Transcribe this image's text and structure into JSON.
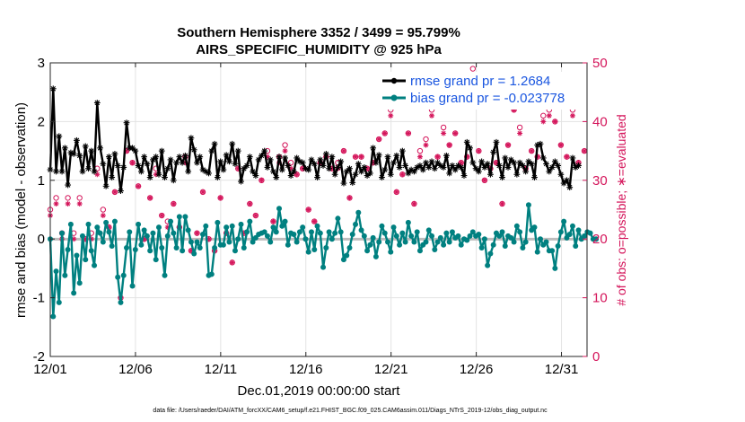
{
  "chart_data": {
    "type": "line",
    "title_line1": "Southern Hemisphere 3352 / 3499 = 95.799%",
    "title_line2": "AIRS_SPECIFIC_HUMIDITY @ 925 hPa",
    "xlabel": "Dec.01,2019 00:00:00 start",
    "ylabel": "rmse and bias (model - observation)",
    "y2label": "# of obs: o=possible; ∗=evaluated",
    "xlim": [
      0,
      31.5
    ],
    "ylim": [
      -2,
      3
    ],
    "y2lim": [
      0,
      50
    ],
    "x_ticks": [
      0,
      5,
      10,
      15,
      20,
      25,
      30
    ],
    "x_tick_labels": [
      "12/01",
      "12/06",
      "12/11",
      "12/16",
      "12/21",
      "12/26",
      "12/31"
    ],
    "y_ticks": [
      -2,
      -1,
      0,
      1,
      2,
      3
    ],
    "y_tick_labels": [
      "-2",
      "-1",
      "0",
      "1",
      "2",
      "3"
    ],
    "y2_ticks": [
      0,
      10,
      20,
      30,
      40,
      50
    ],
    "y2_tick_labels": [
      "0",
      "10",
      "20",
      "30",
      "40",
      "50"
    ],
    "grid": true,
    "legend_position": "top-right",
    "footer": "data file: /Users/raeder/DAI/ATM_forcXX/CAM6_setup/f.e21.FHIST_BGC.f09_025.CAM6assim.011/Diags_NTrS_2019-12/obs_diag_output.nc",
    "series": [
      {
        "name": "rmse grand pr = 1.2684",
        "color": "#000000",
        "marker": "asterisk",
        "values": [
          1.18,
          2.56,
          1.15,
          1.75,
          1.15,
          1.55,
          0.92,
          1.47,
          1.45,
          1.68,
          1.42,
          1.15,
          1.58,
          1.2,
          1.5,
          1.15,
          2.32,
          1.55,
          1.28,
          0.9,
          1.4,
          1.05,
          1.45,
          1.25,
          0.82,
          1.22,
          1.98,
          1.55,
          1.55,
          1.5,
          1.25,
          1.15,
          1.4,
          1.28,
          1.05,
          1.35,
          1.4,
          1.1,
          1.5,
          1.05,
          1.2,
          1.35,
          1.0,
          1.3,
          1.4,
          1.3,
          1.42,
          1.15,
          1.72,
          1.52,
          1.3,
          1.4,
          1.18,
          1.15,
          1.12,
          1.5,
          1.62,
          1.05,
          1.32,
          1.18,
          1.43,
          1.32,
          1.62,
          1.28,
          1.5,
          0.98,
          1.2,
          1.25,
          1.4,
          1.15,
          1.08,
          1.35,
          1.42,
          1.5,
          1.22,
          1.35,
          1.15,
          1.05,
          1.4,
          1.18,
          1.38,
          1.25,
          1.08,
          1.15,
          1.38,
          1.32,
          1.3,
          1.2,
          1.18,
          1.35,
          1.28,
          1.05,
          1.35,
          1.25,
          1.45,
          1.2,
          1.4,
          1.1,
          1.22,
          1.32,
          0.95,
          1.15,
          1.2,
          0.96,
          1.1,
          1.28,
          1.15,
          1.22,
          1.08,
          1.12,
          1.55,
          1.3,
          1.43,
          1.05,
          1.18,
          1.4,
          1.1,
          1.3,
          1.42,
          1.22,
          1.5,
          1.25,
          1.12,
          1.18,
          1.15,
          1.22,
          1.25,
          1.18,
          1.3,
          1.22,
          1.32,
          1.2,
          1.3,
          1.25,
          1.22,
          1.42,
          1.12,
          1.25,
          1.18,
          1.25,
          1.22,
          1.08,
          1.65,
          1.55,
          1.3,
          1.2,
          1.15,
          1.32,
          1.22,
          1.28,
          1.1,
          1.48,
          1.65,
          1.25,
          1.05,
          1.38,
          1.22,
          1.35,
          1.3,
          1.1,
          1.3,
          1.25,
          1.15,
          1.32,
          1.28,
          1.05,
          1.6,
          1.62,
          1.38,
          1.28,
          1.15,
          1.22,
          1.32,
          1.25,
          1.1,
          0.95,
          1.0,
          0.88,
          1.38,
          1.22,
          1.25
        ]
      },
      {
        "name": "bias grand pr = -0.023778",
        "color": "#008080",
        "marker": "dot",
        "values": [
          0.0,
          -1.32,
          -0.55,
          -1.08,
          0.1,
          -0.62,
          -0.18,
          0.25,
          -0.92,
          -0.28,
          -0.75,
          0.05,
          -0.35,
          0.25,
          -0.2,
          -0.45,
          0.2,
          0.1,
          -0.05,
          0.28,
          0.12,
          -0.12,
          0.3,
          -0.65,
          -1.08,
          -0.62,
          -0.15,
          0.12,
          -0.8,
          -0.18,
          0.25,
          -0.1,
          0.15,
          0.05,
          -0.2,
          0.1,
          -0.35,
          0.2,
          -0.15,
          -0.62,
          0.05,
          0.3,
          0.1,
          -0.15,
          0.38,
          -0.2,
          0.38,
          0.15,
          -0.05,
          -0.25,
          -0.05,
          -0.15,
          0.08,
          0.22,
          -0.62,
          -0.6,
          -0.15,
          0.28,
          -0.1,
          -0.1,
          0.2,
          -0.05,
          0.22,
          -0.2,
          0.0,
          0.25,
          -0.15,
          0.12,
          0.3,
          -0.05,
          0.02,
          0.08,
          0.1,
          0.12,
          0.05,
          -0.05,
          0.2,
          0.12,
          0.52,
          0.22,
          0.3,
          -0.1,
          0.1,
          0.08,
          -0.05,
          0.12,
          0.2,
          0.0,
          -0.22,
          0.12,
          -0.18,
          0.22,
          0.1,
          -0.48,
          -0.15,
          0.12,
          0.0,
          0.1,
          0.35,
          0.12,
          -0.35,
          -0.28,
          -0.15,
          0.08,
          0.25,
          0.45,
          0.15,
          0.05,
          -0.2,
          -0.1,
          0.02,
          -0.3,
          -0.05,
          0.22,
          0.1,
          -0.05,
          -0.22,
          0.2,
          0.05,
          -0.1,
          0.1,
          -0.05,
          0.28,
          0.05,
          -0.05,
          0.12,
          -0.2,
          -0.1,
          -0.05,
          0.15,
          0.05,
          -0.18,
          -0.05,
          0.02,
          -0.1,
          0.1,
          -0.05,
          0.12,
          0.02,
          0.05,
          -0.1,
          0.0,
          -0.02,
          0.05,
          0.12,
          0.05,
          0.08,
          -0.15,
          0.0,
          -0.45,
          -0.25,
          -0.1,
          0.1,
          0.05,
          0.12,
          -0.12,
          0.05,
          0.02,
          -0.05,
          0.22,
          0.12,
          -0.15,
          -0.05,
          0.58,
          0.15,
          0.2,
          -0.22,
          0.0,
          -0.1,
          -0.05,
          -0.2,
          -0.2,
          -0.5,
          -0.12,
          0.12,
          0.3,
          0.02,
          0.08,
          0.22,
          -0.12,
          0.15,
          0.0,
          0.05,
          0.12,
          0.1,
          0.0,
          0.0
        ]
      },
      {
        "name": "obs possible",
        "color": "#d4145a",
        "marker": "circle",
        "axis": "right",
        "values": [
          25,
          16,
          27,
          20,
          21,
          21,
          27,
          20,
          21,
          14,
          27,
          20,
          20,
          14,
          21,
          18,
          32,
          18,
          25,
          20,
          22,
          17,
          28,
          14,
          10,
          21,
          35,
          19,
          33,
          17,
          29,
          20,
          20,
          27,
          27,
          28,
          32,
          32,
          24,
          32,
          23,
          28,
          26,
          21,
          22,
          21,
          34,
          32,
          18,
          26,
          21,
          22,
          28,
          24,
          20,
          26,
          18,
          19,
          27,
          33,
          21,
          23,
          16,
          34,
          32,
          26,
          21,
          19,
          26,
          27,
          24,
          28,
          30,
          26,
          35,
          22,
          23,
          16,
          34,
          31,
          36,
          30,
          33,
          29,
          31,
          24,
          32,
          26,
          25,
          32,
          23,
          22,
          33,
          26,
          34,
          27,
          32,
          37,
          33,
          33,
          35,
          29,
          27,
          33,
          34,
          29,
          34,
          28,
          32,
          29,
          33,
          26,
          37,
          34,
          38,
          41,
          42,
          36,
          28,
          35,
          31,
          36,
          38,
          34,
          26,
          28,
          35,
          30,
          37,
          35,
          42,
          36,
          34,
          40,
          39,
          44,
          36,
          30,
          38,
          36,
          33,
          32,
          34,
          39,
          49,
          35,
          35,
          42,
          30,
          33,
          32,
          41,
          33,
          36,
          26,
          40,
          36,
          36,
          42,
          35,
          39,
          32,
          32,
          35,
          35,
          36,
          34,
          36,
          41,
          45,
          42,
          36,
          40,
          41,
          36,
          38,
          34,
          33,
          42,
          48,
          33,
          33,
          35
        ]
      },
      {
        "name": "obs evaluated",
        "color": "#d4145a",
        "marker": "asterisk",
        "axis": "right",
        "values": [
          24,
          5,
          26,
          20,
          20,
          20,
          26,
          20,
          20,
          14,
          26,
          20,
          20,
          14,
          20,
          17,
          31,
          17,
          24,
          20,
          22,
          16,
          28,
          14,
          10,
          20,
          35,
          18,
          33,
          17,
          29,
          20,
          20,
          27,
          27,
          28,
          31,
          31,
          24,
          32,
          22,
          28,
          26,
          21,
          22,
          21,
          33,
          31,
          18,
          25,
          21,
          22,
          28,
          24,
          20,
          26,
          18,
          19,
          27,
          32,
          21,
          23,
          16,
          34,
          32,
          26,
          21,
          19,
          26,
          27,
          24,
          28,
          30,
          26,
          34,
          22,
          23,
          16,
          33,
          30,
          35,
          29,
          32,
          28,
          31,
          24,
          32,
          26,
          25,
          32,
          23,
          22,
          33,
          26,
          34,
          27,
          32,
          36,
          32,
          33,
          35,
          29,
          27,
          33,
          34,
          29,
          34,
          28,
          32,
          29,
          33,
          26,
          37,
          34,
          38,
          41,
          41,
          36,
          28,
          35,
          31,
          36,
          38,
          34,
          26,
          28,
          34,
          30,
          36,
          35,
          41,
          36,
          34,
          40,
          38,
          43,
          36,
          30,
          38,
          36,
          33,
          32,
          34,
          39,
          47,
          35,
          35,
          41,
          30,
          33,
          32,
          40,
          33,
          36,
          26,
          40,
          36,
          36,
          42,
          35,
          38,
          32,
          32,
          35,
          35,
          36,
          34,
          36,
          40,
          44,
          41,
          36,
          40,
          40,
          36,
          38,
          34,
          33,
          41,
          46,
          33,
          33,
          35
        ]
      }
    ]
  }
}
